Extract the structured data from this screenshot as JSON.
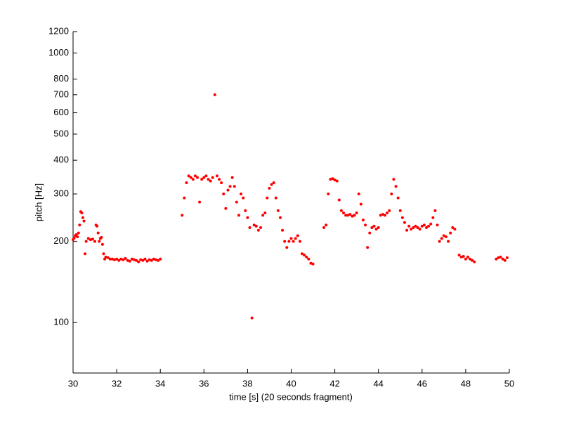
{
  "chart_data": {
    "type": "scatter",
    "xlabel": "time [s] (20 seconds fragment)",
    "ylabel": "pitch [Hz]",
    "color": "#ff0000",
    "log_y": true,
    "xlim": [
      30,
      50
    ],
    "xticks": [
      30,
      32,
      34,
      36,
      38,
      40,
      42,
      44,
      46,
      48,
      50
    ],
    "ylim": [
      65,
      1200
    ],
    "yticks": [
      100,
      200,
      300,
      400,
      500,
      600,
      700,
      800,
      1000,
      1200
    ],
    "x": [
      30.0,
      30.05,
      30.1,
      30.15,
      30.2,
      30.25,
      30.3,
      30.35,
      30.4,
      30.45,
      30.5,
      30.55,
      30.6,
      30.7,
      30.8,
      30.9,
      31.0,
      31.05,
      31.1,
      31.15,
      31.2,
      31.25,
      31.3,
      31.35,
      31.4,
      31.45,
      31.5,
      31.6,
      31.7,
      31.8,
      31.9,
      32.0,
      32.1,
      32.2,
      32.3,
      32.4,
      32.5,
      32.6,
      32.7,
      32.8,
      32.9,
      33.0,
      33.1,
      33.2,
      33.3,
      33.4,
      33.5,
      33.6,
      33.7,
      33.8,
      33.9,
      34.0,
      35.0,
      35.1,
      35.2,
      35.3,
      35.4,
      35.5,
      35.6,
      35.7,
      35.8,
      35.9,
      36.0,
      36.1,
      36.2,
      36.3,
      36.4,
      36.5,
      36.6,
      36.7,
      36.8,
      36.9,
      37.0,
      37.1,
      37.2,
      37.3,
      37.4,
      37.5,
      37.6,
      37.7,
      37.8,
      37.9,
      38.0,
      38.1,
      38.2,
      38.3,
      38.4,
      38.5,
      38.6,
      38.7,
      38.8,
      38.9,
      39.0,
      39.1,
      39.2,
      39.3,
      39.4,
      39.5,
      39.6,
      39.7,
      39.8,
      39.9,
      40.0,
      40.1,
      40.2,
      40.3,
      40.4,
      40.5,
      40.6,
      40.7,
      40.8,
      40.9,
      41.0,
      41.5,
      41.6,
      41.7,
      41.8,
      41.9,
      42.0,
      42.1,
      42.2,
      42.3,
      42.4,
      42.5,
      42.6,
      42.7,
      42.8,
      42.9,
      43.0,
      43.1,
      43.2,
      43.3,
      43.4,
      43.5,
      43.6,
      43.7,
      43.8,
      43.9,
      44.0,
      44.1,
      44.2,
      44.3,
      44.4,
      44.5,
      44.6,
      44.7,
      44.8,
      44.9,
      45.0,
      45.1,
      45.2,
      45.3,
      45.4,
      45.5,
      45.6,
      45.7,
      45.8,
      45.9,
      46.0,
      46.1,
      46.2,
      46.3,
      46.4,
      46.5,
      46.6,
      46.7,
      46.8,
      46.9,
      47.0,
      47.1,
      47.2,
      47.3,
      47.4,
      47.5,
      47.7,
      47.8,
      47.9,
      48.0,
      48.1,
      48.2,
      48.3,
      48.4,
      49.4,
      49.5,
      49.6,
      49.7,
      49.8,
      49.9
    ],
    "values": [
      203,
      206,
      210,
      212,
      208,
      215,
      230,
      258,
      255,
      245,
      238,
      180,
      200,
      205,
      203,
      204,
      200,
      230,
      228,
      215,
      200,
      205,
      207,
      195,
      180,
      172,
      175,
      174,
      172,
      172,
      171,
      172,
      170,
      172,
      171,
      173,
      170,
      169,
      172,
      171,
      170,
      168,
      171,
      170,
      172,
      169,
      171,
      170,
      172,
      171,
      170,
      172,
      250,
      290,
      330,
      350,
      345,
      340,
      350,
      345,
      280,
      340,
      345,
      350,
      340,
      335,
      345,
      700,
      350,
      340,
      330,
      300,
      265,
      310,
      320,
      345,
      320,
      280,
      250,
      300,
      290,
      260,
      245,
      225,
      104,
      230,
      228,
      220,
      225,
      250,
      255,
      290,
      315,
      325,
      330,
      290,
      260,
      245,
      220,
      200,
      190,
      200,
      205,
      200,
      205,
      210,
      200,
      180,
      178,
      175,
      172,
      166,
      165,
      225,
      230,
      300,
      340,
      342,
      338,
      335,
      285,
      260,
      255,
      250,
      250,
      252,
      248,
      250,
      255,
      300,
      275,
      240,
      230,
      190,
      215,
      225,
      228,
      222,
      225,
      250,
      252,
      250,
      255,
      260,
      300,
      340,
      320,
      290,
      260,
      245,
      235,
      220,
      228,
      222,
      225,
      228,
      225,
      222,
      228,
      230,
      225,
      228,
      232,
      245,
      260,
      230,
      200,
      205,
      210,
      208,
      200,
      215,
      225,
      222,
      178,
      175,
      176,
      172,
      175,
      172,
      170,
      168,
      172,
      174,
      175,
      172,
      170,
      174
    ]
  }
}
